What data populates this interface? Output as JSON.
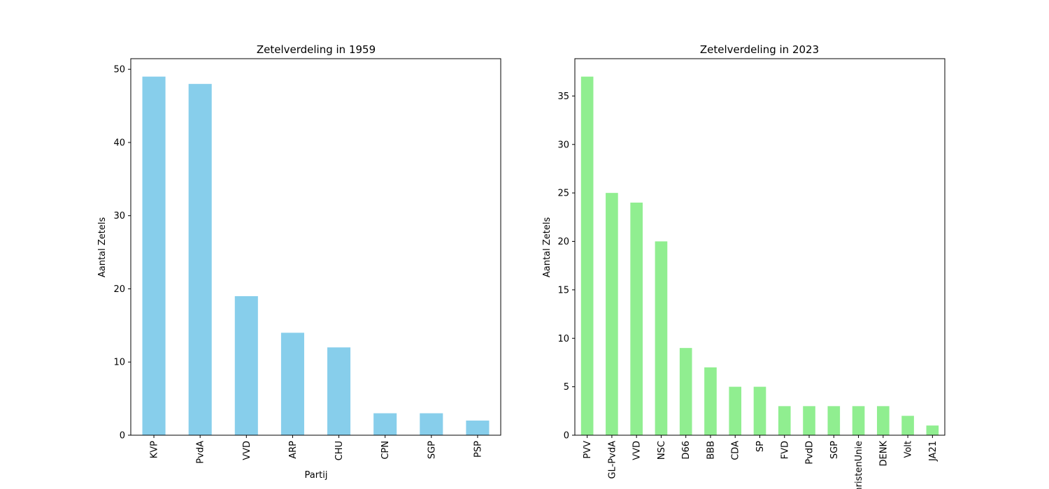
{
  "chart_data": [
    {
      "type": "bar",
      "title": "Zetelverdeling in 1959",
      "xlabel": "Partij",
      "ylabel": "Aantal Zetels",
      "categories": [
        "KVP",
        "PvdA",
        "VVD",
        "ARP",
        "CHU",
        "CPN",
        "SGP",
        "PSP"
      ],
      "values": [
        49,
        48,
        19,
        14,
        12,
        3,
        3,
        2
      ],
      "yticks": [
        0,
        10,
        20,
        30,
        40,
        50
      ],
      "ylim": [
        0,
        51.45
      ],
      "grid": false,
      "color": "#87ceeb"
    },
    {
      "type": "bar",
      "title": "Zetelverdeling in 2023",
      "xlabel": "",
      "ylabel": "Aantal Zetels",
      "categories": [
        "PVV",
        "GL-PvdA",
        "VVD",
        "NSC",
        "D66",
        "BBB",
        "CDA",
        "SP",
        "FVD",
        "PvdD",
        "SGP",
        "ChristenUnie",
        "DENK",
        "Volt",
        "JA21"
      ],
      "values": [
        37,
        25,
        24,
        20,
        9,
        7,
        5,
        5,
        3,
        3,
        3,
        3,
        3,
        2,
        1
      ],
      "yticks": [
        0,
        5,
        10,
        15,
        20,
        25,
        30,
        35
      ],
      "ylim": [
        0,
        38.85
      ],
      "grid": false,
      "color": "#90ee90"
    }
  ]
}
